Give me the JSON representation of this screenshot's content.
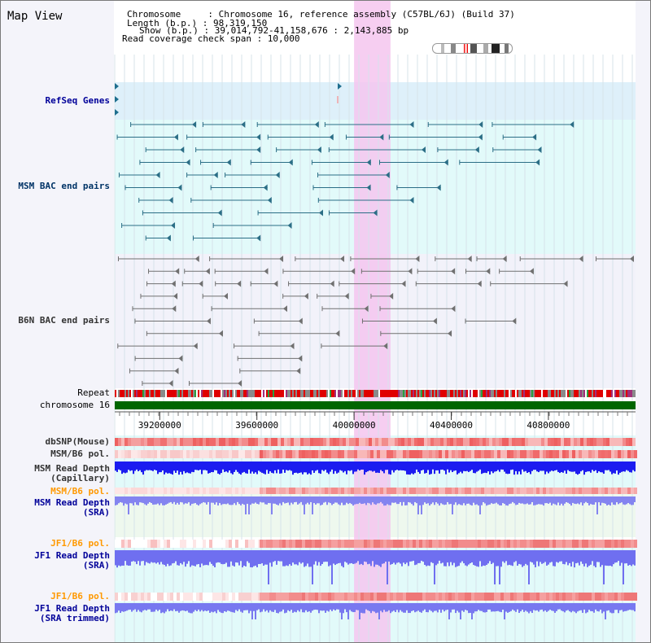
{
  "title": "Map View",
  "info": {
    "chromosome_line": "Chromosome     : Chromosome 16, reference assembly (C57BL/6J) (Build 37)",
    "length_line": "Length (b.p.) : 98,319,150",
    "show_line": "Show (b.p.) : 39,014,792-41,158,676 : 2,143,885 bp",
    "span_line": "Read coverage check span : 10,000"
  },
  "view": {
    "start": 39014792,
    "end": 41158676,
    "highlight": [
      40000000,
      40150000
    ]
  },
  "tracks": {
    "refseq": "RefSeq Genes",
    "msm_bac": "MSM BAC end pairs",
    "b6n_bac": "B6N BAC end pairs",
    "repeat": "Repeat",
    "chromosome": "chromosome 16",
    "dbsnp": "dbSNP(Mouse)",
    "msm_pol": "MSM/B6 pol.",
    "msm_depth_cap_1": "MSM Read Depth",
    "msm_depth_cap_2": "(Capillary)",
    "msm_pol_2": "MSM/B6 pol.",
    "msm_depth_sra_1": "MSM Read Depth",
    "msm_depth_sra_2": "(SRA)",
    "jf1_pol": "JF1/B6 pol.",
    "jf1_depth_sra_1": "JF1 Read Depth",
    "jf1_depth_sra_2": "(SRA)",
    "jf1_pol_2": "JF1/B6 pol.",
    "jf1_depth_trim_1": "JF1 Read Depth",
    "jf1_depth_trim_2": "(SRA trimmed)"
  },
  "axis": {
    "ticks": [
      {
        "pos": 39200000,
        "label": "39200000"
      },
      {
        "pos": 39600000,
        "label": "39600000"
      },
      {
        "pos": 40000000,
        "label": "40000000"
      },
      {
        "pos": 40400000,
        "label": "40400000"
      },
      {
        "pos": 40800000,
        "label": "40800000"
      }
    ]
  },
  "colors": {
    "label_blue": "#000099",
    "label_navy": "#003366",
    "label_orange": "#ff9900",
    "bac_msm": "#2b6e86",
    "bac_b6n": "#707070",
    "highlight": "#f4c6ee",
    "refseq_bg": "#def0fa",
    "track_bg": "#e2fafa",
    "chromosome_green": "#006600",
    "depth_blue": "#1c1cf0",
    "depth_light": "#8484f0"
  }
}
